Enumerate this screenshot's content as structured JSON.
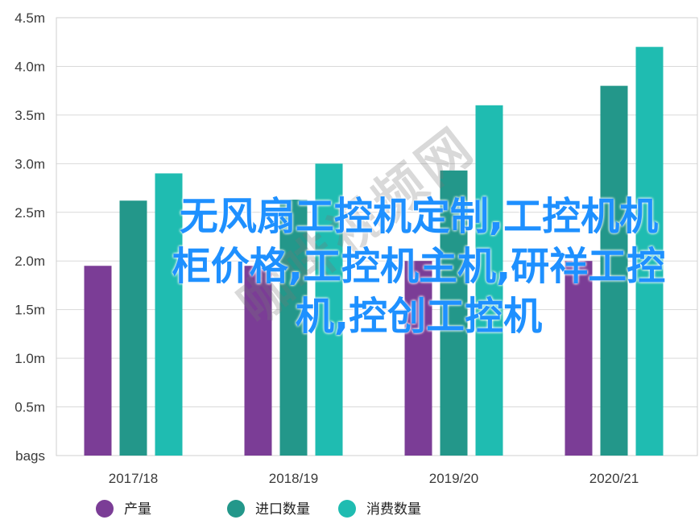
{
  "chart_data": {
    "type": "bar",
    "categories": [
      "2017/18",
      "2018/19",
      "2019/20",
      "2020/21"
    ],
    "series": [
      {
        "name": "产量",
        "color": "#7b3d96",
        "values": [
          1.95,
          1.95,
          2.0,
          2.0
        ]
      },
      {
        "name": "进口数量",
        "color": "#23978a",
        "values": [
          2.62,
          2.63,
          2.93,
          3.8
        ]
      },
      {
        "name": "消费数量",
        "color": "#1fbcb1",
        "values": [
          2.9,
          3.0,
          3.6,
          4.2
        ]
      }
    ],
    "y_ticks": [
      "bags",
      "0.5m",
      "1.0m",
      "1.5m",
      "2.0m",
      "2.5m",
      "3.0m",
      "3.5m",
      "4.0m",
      "4.5m"
    ],
    "ylim": [
      0,
      4.5
    ],
    "grid": true,
    "legend_position": "bottom"
  },
  "overlay_text": "无风扇工控机定制,工控机机柜价格,工控机主机,研祥工控机,控创工控机",
  "watermark_text": "咖啡视频网"
}
